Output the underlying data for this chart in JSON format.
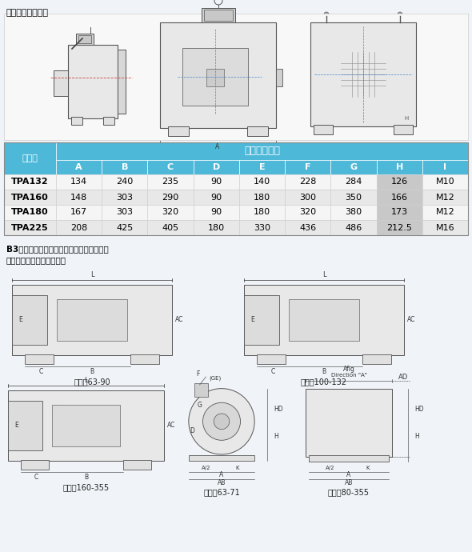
{
  "title": "专用电机安装尺寸",
  "table_header_main": "外形安装尺寸",
  "table_col1": "机座号",
  "table_cols": [
    "A",
    "B",
    "C",
    "D",
    "E",
    "F",
    "G",
    "H",
    "I"
  ],
  "table_rows": [
    [
      "TPA132",
      "134",
      "240",
      "235",
      "90",
      "140",
      "228",
      "284",
      "126",
      "M10"
    ],
    [
      "TPA160",
      "148",
      "303",
      "290",
      "90",
      "180",
      "300",
      "350",
      "166",
      "M12"
    ],
    [
      "TPA180",
      "167",
      "303",
      "320",
      "90",
      "180",
      "320",
      "380",
      "173",
      "M12"
    ],
    [
      "TPA225",
      "208",
      "425",
      "405",
      "180",
      "330",
      "436",
      "486",
      "212.5",
      "M16"
    ]
  ],
  "header_bg": "#4eb8d8",
  "header_text": "#ffffff",
  "row_bg_odd": "#f5f5f5",
  "row_bg_even": "#e8e8e8",
  "col_H_bg": "#c8c8c8",
  "b3_text_line1": "B3型：机座带底脚、端盖上无凸缘的电动机",
  "b3_text_line2": "安装尺寸及公差、外形尺寸",
  "caption1": "机座号63-90",
  "caption2": "机座号100-132",
  "caption3": "机座号160-355",
  "caption4": "机座号63-71",
  "caption5": "机座号80-355",
  "bg_color": "#f0f4f8"
}
